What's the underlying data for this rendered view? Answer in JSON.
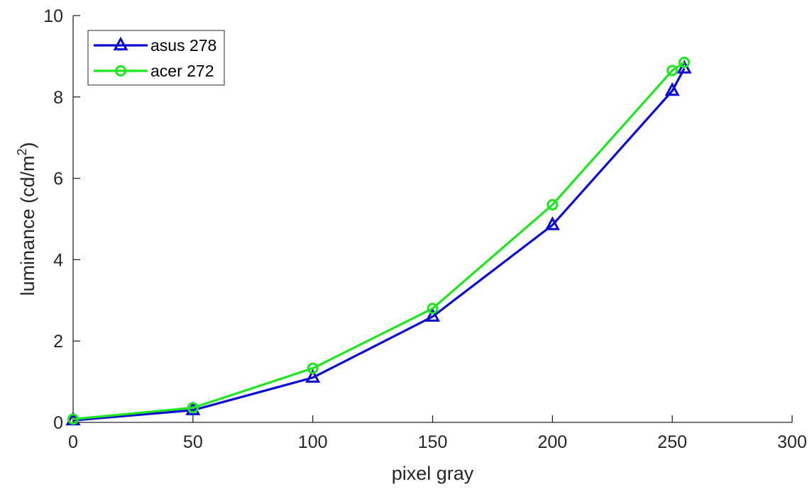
{
  "chart_data": {
    "type": "line",
    "title": "",
    "xlabel": "pixel gray",
    "ylabel": "luminance (cd/m",
    "ylabel_superscript": "2",
    "ylabel_suffix": ")",
    "xlim": [
      0,
      300
    ],
    "ylim": [
      0,
      10
    ],
    "xticks": [
      0,
      50,
      100,
      150,
      200,
      250,
      300
    ],
    "yticks": [
      0,
      2,
      4,
      6,
      8,
      10
    ],
    "grid": false,
    "legend_position": "top-left",
    "series": [
      {
        "name": "asus 278",
        "color": "#0a0ad2",
        "marker": "triangle",
        "x": [
          0,
          50,
          100,
          150,
          200,
          250,
          255
        ],
        "y": [
          0.05,
          0.3,
          1.1,
          2.6,
          4.85,
          8.15,
          8.7
        ]
      },
      {
        "name": "acer 272",
        "color": "#1ee61e",
        "marker": "circle",
        "x": [
          0,
          50,
          100,
          150,
          200,
          250,
          255
        ],
        "y": [
          0.08,
          0.36,
          1.33,
          2.8,
          5.35,
          8.65,
          8.85
        ]
      }
    ]
  }
}
